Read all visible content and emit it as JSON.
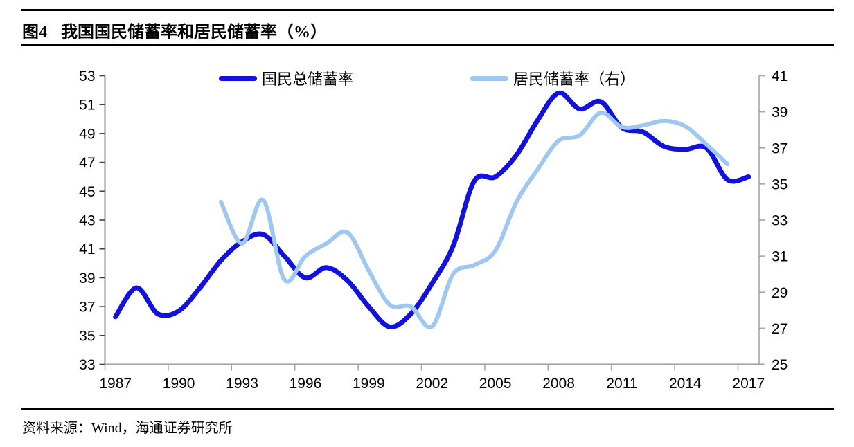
{
  "figure": {
    "figure_label": "图4",
    "title_text": "我国国民储蓄率和居民储蓄率（%）",
    "source_label": "资料来源：Wind，海通证券研究所"
  },
  "colors": {
    "national_line": "#1212dc",
    "household_line": "#9ec7f2",
    "left_axis": "#404040",
    "secondary_axis": "#a6a6a6",
    "rule": "#000000"
  },
  "chart_data": {
    "type": "line",
    "title": "图4 我国国民储蓄率和居民储蓄率（%）",
    "grid": false,
    "legend_position": "top",
    "legend": [
      {
        "label": "国民总储蓄率",
        "color": "#1212dc"
      },
      {
        "label": "居民储蓄率（右）",
        "color": "#9ec7f2"
      }
    ],
    "x_axis": {
      "range": [
        1987,
        2017
      ],
      "tick_years": [
        1987,
        1990,
        1993,
        1996,
        1999,
        2002,
        2005,
        2008,
        2011,
        2014,
        2017
      ],
      "tick_labels": [
        "1987",
        "1990",
        "1993",
        "1996",
        "1999",
        "2002",
        "2005",
        "2008",
        "2011",
        "2014",
        "2017"
      ]
    },
    "left_axis": {
      "range": [
        33,
        53
      ],
      "ticks": [
        33,
        35,
        37,
        39,
        41,
        43,
        45,
        47,
        49,
        51,
        53
      ]
    },
    "right_axis": {
      "range": [
        25,
        41
      ],
      "ticks": [
        25,
        27,
        29,
        31,
        33,
        35,
        37,
        39,
        41
      ]
    },
    "series": [
      {
        "name": "国民总储蓄率",
        "axis": "left",
        "color": "#1212dc",
        "points": [
          [
            1987,
            36.3
          ],
          [
            1988,
            38.3
          ],
          [
            1989,
            36.5
          ],
          [
            1990,
            36.7
          ],
          [
            1991,
            38.3
          ],
          [
            1992,
            40.2
          ],
          [
            1993,
            41.5
          ],
          [
            1994,
            42.0
          ],
          [
            1995,
            40.5
          ],
          [
            1996,
            39.0
          ],
          [
            1997,
            39.7
          ],
          [
            1998,
            38.8
          ],
          [
            1999,
            37.0
          ],
          [
            2000,
            35.6
          ],
          [
            2001,
            36.5
          ],
          [
            2002,
            38.6
          ],
          [
            2003,
            41.2
          ],
          [
            2004,
            45.7
          ],
          [
            2005,
            46.0
          ],
          [
            2006,
            47.5
          ],
          [
            2007,
            49.9
          ],
          [
            2008,
            51.8
          ],
          [
            2009,
            50.7
          ],
          [
            2010,
            51.2
          ],
          [
            2011,
            49.4
          ],
          [
            2012,
            49.1
          ],
          [
            2013,
            48.1
          ],
          [
            2014,
            47.9
          ],
          [
            2015,
            48.0
          ],
          [
            2016,
            45.8
          ],
          [
            2017,
            46.0
          ]
        ]
      },
      {
        "name": "居民储蓄率（右）",
        "axis": "right",
        "color": "#9ec7f2",
        "points": [
          [
            1992,
            34.0
          ],
          [
            1993,
            31.7
          ],
          [
            1994,
            34.1
          ],
          [
            1995,
            29.7
          ],
          [
            1996,
            31.0
          ],
          [
            1997,
            31.7
          ],
          [
            1998,
            32.3
          ],
          [
            1999,
            30.2
          ],
          [
            2000,
            28.3
          ],
          [
            2001,
            28.2
          ],
          [
            2002,
            27.1
          ],
          [
            2003,
            30.0
          ],
          [
            2004,
            30.5
          ],
          [
            2005,
            31.3
          ],
          [
            2006,
            34.0
          ],
          [
            2007,
            35.8
          ],
          [
            2008,
            37.4
          ],
          [
            2009,
            37.7
          ],
          [
            2010,
            38.95
          ],
          [
            2011,
            38.15
          ],
          [
            2012,
            38.25
          ],
          [
            2013,
            38.5
          ],
          [
            2014,
            38.2
          ],
          [
            2015,
            37.2
          ],
          [
            2016,
            36.1
          ]
        ]
      }
    ]
  }
}
